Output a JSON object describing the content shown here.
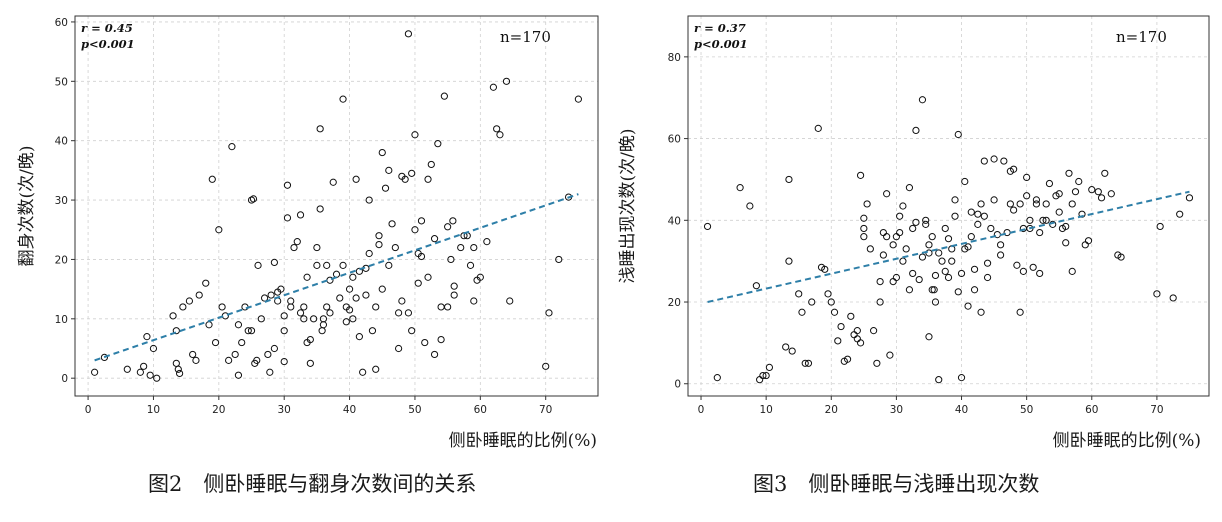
{
  "chart_data": [
    {
      "type": "scatter",
      "title": "",
      "xlabel": "侧卧睡眠的比例(%)",
      "ylabel": "翻身次数(次/晚)",
      "xlim": [
        -2,
        78
      ],
      "ylim": [
        -3,
        61
      ],
      "xticks": [
        0,
        10,
        20,
        30,
        40,
        50,
        60,
        70
      ],
      "yticks": [
        0,
        10,
        20,
        30,
        40,
        50,
        60
      ],
      "grid": true,
      "stats": {
        "r": "r = 0.45",
        "p": "p<0.001",
        "n": "n=170"
      },
      "trendline": {
        "style": "dashed",
        "color": "#2e7fa8",
        "from": [
          1,
          3.0
        ],
        "to": [
          75,
          31.0
        ]
      },
      "caption": "图2　侧卧睡眠与翻身次数间的关系",
      "points": [
        [
          1,
          1
        ],
        [
          2.5,
          3.5
        ],
        [
          6,
          1.5
        ],
        [
          8,
          1
        ],
        [
          8.5,
          2
        ],
        [
          9,
          7
        ],
        [
          9.5,
          0.5
        ],
        [
          10,
          5
        ],
        [
          10.5,
          0
        ],
        [
          13,
          10.5
        ],
        [
          13.5,
          2.5
        ],
        [
          13.5,
          8
        ],
        [
          13.8,
          1.5
        ],
        [
          14,
          0.8
        ],
        [
          14.5,
          12
        ],
        [
          15.5,
          13
        ],
        [
          16,
          4
        ],
        [
          16.5,
          3
        ],
        [
          17,
          14
        ],
        [
          18,
          16
        ],
        [
          18.5,
          9
        ],
        [
          19,
          33.5
        ],
        [
          19.5,
          6
        ],
        [
          20,
          25
        ],
        [
          20.5,
          12
        ],
        [
          21,
          10.5
        ],
        [
          21.5,
          3
        ],
        [
          22,
          39
        ],
        [
          22.5,
          4
        ],
        [
          23,
          9
        ],
        [
          23,
          0.5
        ],
        [
          23.5,
          6
        ],
        [
          24,
          12
        ],
        [
          24.5,
          8
        ],
        [
          25,
          8
        ],
        [
          25,
          30
        ],
        [
          25.3,
          30.2
        ],
        [
          25.5,
          2.5
        ],
        [
          25.8,
          3
        ],
        [
          26,
          19
        ],
        [
          26.5,
          10
        ],
        [
          27,
          13.5
        ],
        [
          27.5,
          4
        ],
        [
          27.8,
          1
        ],
        [
          28,
          14
        ],
        [
          28.5,
          19.5
        ],
        [
          28.5,
          5
        ],
        [
          29,
          13
        ],
        [
          29,
          14.5
        ],
        [
          29.5,
          15
        ],
        [
          30,
          10.5
        ],
        [
          30,
          2.8
        ],
        [
          30,
          8
        ],
        [
          30.5,
          27
        ],
        [
          30.5,
          32.5
        ],
        [
          31,
          13
        ],
        [
          31,
          12
        ],
        [
          31.5,
          22
        ],
        [
          32,
          23
        ],
        [
          32.5,
          27.5
        ],
        [
          32.5,
          11
        ],
        [
          33,
          12
        ],
        [
          33,
          10
        ],
        [
          33.5,
          6
        ],
        [
          33.5,
          17
        ],
        [
          34,
          2.5
        ],
        [
          34,
          6.5
        ],
        [
          34.5,
          10
        ],
        [
          35,
          19
        ],
        [
          35,
          22
        ],
        [
          35.5,
          28.5
        ],
        [
          35.5,
          42
        ],
        [
          35.8,
          8
        ],
        [
          36,
          10
        ],
        [
          36,
          9
        ],
        [
          36.5,
          19
        ],
        [
          36.5,
          12
        ],
        [
          37,
          11
        ],
        [
          37,
          16.5
        ],
        [
          37.5,
          33
        ],
        [
          38,
          17.5
        ],
        [
          38.5,
          13.5
        ],
        [
          39,
          47
        ],
        [
          39,
          19
        ],
        [
          39.5,
          12
        ],
        [
          39.5,
          9.5
        ],
        [
          40,
          11.5
        ],
        [
          40,
          15
        ],
        [
          40.5,
          17
        ],
        [
          40.5,
          10
        ],
        [
          41,
          33.5
        ],
        [
          41,
          13.5
        ],
        [
          41.5,
          18
        ],
        [
          41.5,
          7
        ],
        [
          42,
          1
        ],
        [
          42.5,
          18.5
        ],
        [
          42.5,
          14
        ],
        [
          43,
          21
        ],
        [
          43,
          30
        ],
        [
          43.5,
          8
        ],
        [
          44,
          1.5
        ],
        [
          44,
          12
        ],
        [
          44.5,
          24
        ],
        [
          44.5,
          22.5
        ],
        [
          45,
          15
        ],
        [
          45,
          38
        ],
        [
          45.5,
          32
        ],
        [
          46,
          19
        ],
        [
          46,
          35
        ],
        [
          46.5,
          26
        ],
        [
          47,
          22
        ],
        [
          47.5,
          5
        ],
        [
          47.5,
          11
        ],
        [
          48,
          34
        ],
        [
          48,
          13
        ],
        [
          48.5,
          33.5
        ],
        [
          49,
          58
        ],
        [
          49,
          11
        ],
        [
          49.5,
          34.5
        ],
        [
          49.5,
          8
        ],
        [
          50,
          25
        ],
        [
          50,
          41
        ],
        [
          50.5,
          16
        ],
        [
          50.5,
          21
        ],
        [
          51,
          26.5
        ],
        [
          51,
          20.5
        ],
        [
          51.5,
          6
        ],
        [
          52,
          33.5
        ],
        [
          52,
          17
        ],
        [
          52.5,
          36
        ],
        [
          53,
          23.5
        ],
        [
          53,
          4
        ],
        [
          53.5,
          39.5
        ],
        [
          54,
          12
        ],
        [
          54,
          6.5
        ],
        [
          54.5,
          47.5
        ],
        [
          55,
          12
        ],
        [
          55,
          25.5
        ],
        [
          55.5,
          20
        ],
        [
          55.8,
          26.5
        ],
        [
          56,
          14
        ],
        [
          56,
          15.5
        ],
        [
          57,
          22
        ],
        [
          57.5,
          24
        ],
        [
          58,
          24
        ],
        [
          58.5,
          19
        ],
        [
          59,
          22
        ],
        [
          59,
          13
        ],
        [
          59.5,
          16.5
        ],
        [
          60,
          17
        ],
        [
          61,
          23
        ],
        [
          62,
          49
        ],
        [
          62.5,
          42
        ],
        [
          63,
          41
        ],
        [
          64,
          50
        ],
        [
          64.5,
          13
        ],
        [
          70,
          2
        ],
        [
          70.5,
          11
        ],
        [
          72,
          20
        ],
        [
          73.5,
          30.5
        ],
        [
          75,
          47
        ]
      ]
    },
    {
      "type": "scatter",
      "title": "",
      "xlabel": "侧卧睡眠的比例(%)",
      "ylabel": "浅睡出现次数(次/晚)",
      "xlim": [
        -2,
        78
      ],
      "ylim": [
        -3,
        90
      ],
      "xticks": [
        0,
        10,
        20,
        30,
        40,
        50,
        60,
        70
      ],
      "yticks": [
        0,
        20,
        40,
        60,
        80
      ],
      "grid": true,
      "stats": {
        "r": "r = 0.37",
        "p": "p<0.001",
        "n": "n=170"
      },
      "trendline": {
        "style": "dashed",
        "color": "#2e7fa8",
        "from": [
          1,
          20.0
        ],
        "to": [
          75,
          47.0
        ]
      },
      "caption": "图3　侧卧睡眠与浅睡出现次数",
      "points": [
        [
          1,
          38.5
        ],
        [
          2.5,
          1.5
        ],
        [
          6,
          48
        ],
        [
          7.5,
          43.5
        ],
        [
          8.5,
          24
        ],
        [
          9,
          1
        ],
        [
          9.5,
          2
        ],
        [
          10,
          2
        ],
        [
          10.5,
          4
        ],
        [
          13,
          9
        ],
        [
          13.5,
          30
        ],
        [
          13.5,
          50
        ],
        [
          14,
          8
        ],
        [
          15,
          22
        ],
        [
          15.5,
          17.5
        ],
        [
          16,
          5
        ],
        [
          16.5,
          5
        ],
        [
          17,
          20
        ],
        [
          18,
          62.5
        ],
        [
          18.5,
          28.5
        ],
        [
          19,
          28
        ],
        [
          19.5,
          22
        ],
        [
          20,
          20
        ],
        [
          20.5,
          17.5
        ],
        [
          21,
          10.5
        ],
        [
          21.5,
          14
        ],
        [
          22,
          5.5
        ],
        [
          22.5,
          6
        ],
        [
          23,
          16.5
        ],
        [
          23.5,
          12
        ],
        [
          24,
          11
        ],
        [
          24,
          13
        ],
        [
          24.5,
          10
        ],
        [
          24.5,
          51
        ],
        [
          25,
          36
        ],
        [
          25,
          40.5
        ],
        [
          25,
          38
        ],
        [
          25.5,
          44
        ],
        [
          26,
          33
        ],
        [
          26.5,
          13
        ],
        [
          27,
          5
        ],
        [
          27.5,
          20
        ],
        [
          27.5,
          25
        ],
        [
          28,
          31.5
        ],
        [
          28,
          37
        ],
        [
          28.5,
          36
        ],
        [
          28.5,
          46.5
        ],
        [
          29,
          7
        ],
        [
          29.5,
          34
        ],
        [
          29.5,
          25
        ],
        [
          30,
          26
        ],
        [
          30,
          36
        ],
        [
          30.5,
          37
        ],
        [
          30.5,
          41
        ],
        [
          31,
          43.5
        ],
        [
          31,
          30
        ],
        [
          31.5,
          33
        ],
        [
          32,
          48
        ],
        [
          32,
          23
        ],
        [
          32.5,
          27
        ],
        [
          32.5,
          38
        ],
        [
          33,
          62
        ],
        [
          33,
          39.5
        ],
        [
          33.5,
          25.5
        ],
        [
          34,
          69.5
        ],
        [
          34,
          31
        ],
        [
          34.5,
          39
        ],
        [
          34.5,
          40
        ],
        [
          35,
          32
        ],
        [
          35,
          34
        ],
        [
          35,
          11.5
        ],
        [
          35.5,
          23
        ],
        [
          35.5,
          36
        ],
        [
          35.8,
          23
        ],
        [
          36,
          20
        ],
        [
          36,
          26.5
        ],
        [
          36.5,
          1
        ],
        [
          36.5,
          32
        ],
        [
          37,
          30
        ],
        [
          37.5,
          38
        ],
        [
          37.5,
          27.5
        ],
        [
          38,
          35.5
        ],
        [
          38,
          26
        ],
        [
          38.5,
          30
        ],
        [
          38.5,
          33
        ],
        [
          39,
          41
        ],
        [
          39,
          45
        ],
        [
          39.5,
          61
        ],
        [
          39.5,
          22.5
        ],
        [
          40,
          27
        ],
        [
          40,
          1.5
        ],
        [
          40.5,
          49.5
        ],
        [
          40.5,
          33
        ],
        [
          41,
          33.5
        ],
        [
          41,
          19
        ],
        [
          41.5,
          36
        ],
        [
          41.5,
          42
        ],
        [
          42,
          23
        ],
        [
          42,
          28
        ],
        [
          42.5,
          41.5
        ],
        [
          42.5,
          39
        ],
        [
          43,
          44
        ],
        [
          43,
          17.5
        ],
        [
          43.5,
          54.5
        ],
        [
          43.5,
          41
        ],
        [
          44,
          26
        ],
        [
          44,
          29.5
        ],
        [
          44.5,
          38
        ],
        [
          45,
          55
        ],
        [
          45,
          45
        ],
        [
          45.5,
          36.5
        ],
        [
          46,
          34
        ],
        [
          46,
          31.5
        ],
        [
          46.5,
          54.5
        ],
        [
          47,
          37
        ],
        [
          47.5,
          44
        ],
        [
          47.5,
          52
        ],
        [
          48,
          52.5
        ],
        [
          48,
          42.5
        ],
        [
          48.5,
          29
        ],
        [
          49,
          44
        ],
        [
          49,
          17.5
        ],
        [
          49.5,
          27.5
        ],
        [
          49.5,
          38
        ],
        [
          50,
          46
        ],
        [
          50,
          50.5
        ],
        [
          50.5,
          40
        ],
        [
          50.5,
          38
        ],
        [
          51,
          28.5
        ],
        [
          51.5,
          44
        ],
        [
          51.5,
          45
        ],
        [
          52,
          37
        ],
        [
          52,
          27
        ],
        [
          52.5,
          40
        ],
        [
          53,
          40
        ],
        [
          53,
          44
        ],
        [
          53.5,
          49
        ],
        [
          54,
          39
        ],
        [
          54.5,
          46
        ],
        [
          55,
          46.5
        ],
        [
          55,
          42
        ],
        [
          55.5,
          38
        ],
        [
          56,
          38.5
        ],
        [
          56,
          34.5
        ],
        [
          56.5,
          51.5
        ],
        [
          57,
          27.5
        ],
        [
          57,
          44
        ],
        [
          57.5,
          47
        ],
        [
          58,
          49.5
        ],
        [
          58.5,
          41.5
        ],
        [
          59,
          34
        ],
        [
          59.5,
          35
        ],
        [
          60,
          47.5
        ],
        [
          61,
          47
        ],
        [
          61.5,
          45.5
        ],
        [
          62,
          51.5
        ],
        [
          63,
          46.5
        ],
        [
          64,
          31.5
        ],
        [
          64.5,
          31
        ],
        [
          70,
          22
        ],
        [
          70.5,
          38.5
        ],
        [
          72.5,
          21
        ],
        [
          73.5,
          41.5
        ],
        [
          75,
          45.5
        ]
      ]
    }
  ]
}
